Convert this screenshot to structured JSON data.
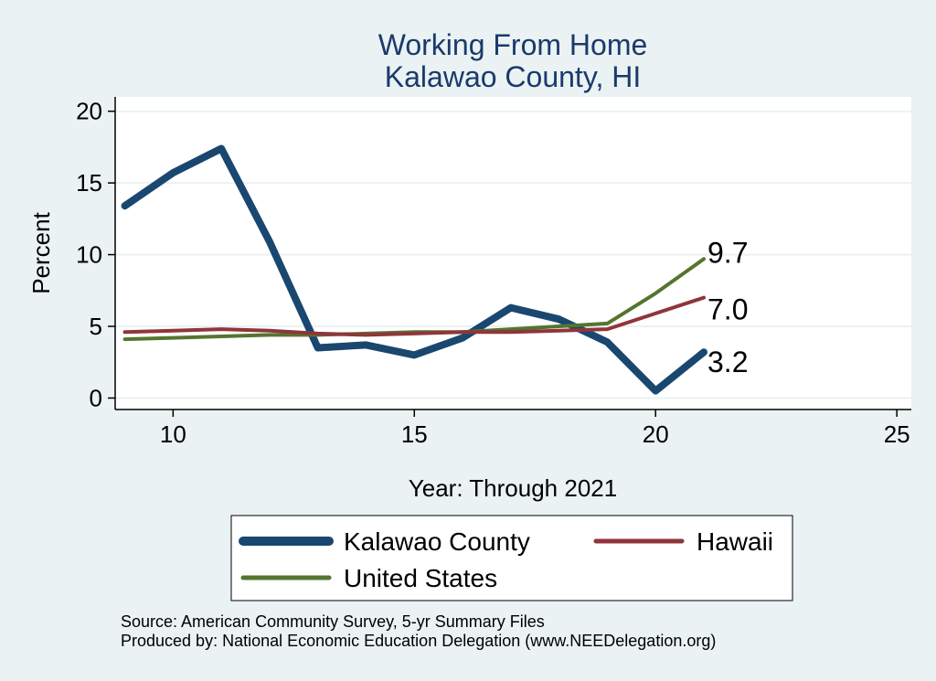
{
  "chart_data": {
    "type": "line",
    "title": [
      "Working From Home",
      "Kalawao County, HI"
    ],
    "xlabel": "Year: Through 2021",
    "ylabel": "Percent",
    "xlim": [
      8.8,
      25.3
    ],
    "ylim": [
      -0.8,
      21
    ],
    "xticks": [
      10,
      15,
      20,
      25
    ],
    "yticks": [
      0,
      5,
      10,
      15,
      20
    ],
    "grid": true,
    "legend_position": "bottom",
    "series": [
      {
        "name": "Kalawao County",
        "color": "#1a476f",
        "width": 8,
        "x": [
          9,
          10,
          11,
          12,
          13,
          14,
          15,
          16,
          17,
          18,
          19,
          20,
          21
        ],
        "y": [
          13.4,
          15.7,
          17.4,
          10.9,
          3.5,
          3.7,
          3.0,
          4.2,
          6.3,
          5.5,
          3.9,
          0.5,
          3.2
        ],
        "end_label": "3.2"
      },
      {
        "name": "Hawaii",
        "color": "#90353b",
        "width": 4,
        "x": [
          9,
          10,
          11,
          12,
          13,
          14,
          15,
          16,
          17,
          18,
          19,
          20,
          21
        ],
        "y": [
          4.6,
          4.7,
          4.8,
          4.7,
          4.5,
          4.4,
          4.5,
          4.6,
          4.6,
          4.7,
          4.8,
          5.9,
          7.0
        ],
        "end_label": "7.0"
      },
      {
        "name": "United States",
        "color": "#55752f",
        "width": 4,
        "x": [
          9,
          10,
          11,
          12,
          13,
          14,
          15,
          16,
          17,
          18,
          19,
          20,
          21
        ],
        "y": [
          4.1,
          4.2,
          4.3,
          4.4,
          4.4,
          4.5,
          4.6,
          4.6,
          4.8,
          5.0,
          5.2,
          7.3,
          9.7
        ],
        "end_label": "9.7"
      }
    ]
  },
  "notes": [
    "Source: American Community Survey, 5-yr Summary Files",
    "Produced by: National Economic Education Delegation (www.NEEDelegation.org)"
  ]
}
